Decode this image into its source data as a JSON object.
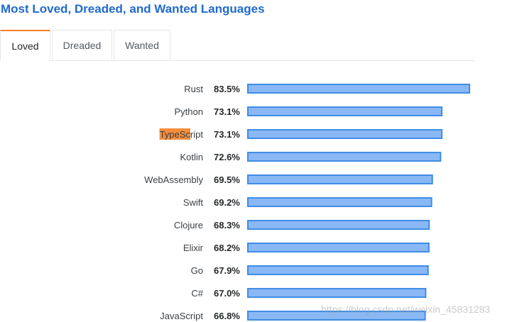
{
  "page": {
    "title": "Most Loved, Dreaded, and Wanted Languages"
  },
  "tabs": [
    {
      "label": "Loved",
      "active": true
    },
    {
      "label": "Dreaded",
      "active": false
    },
    {
      "label": "Wanted",
      "active": false
    }
  ],
  "colors": {
    "title": "#1f6acb",
    "tab_accent": "#f48024",
    "bar_fill": "#8ab8f5",
    "bar_stroke": "#3f8de6",
    "highlight": "#f58e3c"
  },
  "highlight": {
    "text": "TypeSc",
    "category": "TypeScript"
  },
  "chart_data": {
    "type": "bar",
    "orientation": "horizontal",
    "categories": [
      "Rust",
      "Python",
      "TypeScript",
      "Kotlin",
      "WebAssembly",
      "Swift",
      "Clojure",
      "Elixir",
      "Go",
      "C#",
      "JavaScript"
    ],
    "values": [
      83.5,
      73.1,
      73.1,
      72.6,
      69.5,
      69.2,
      68.3,
      68.2,
      67.9,
      67.0,
      66.8
    ],
    "value_labels": [
      "83.5%",
      "73.1%",
      "73.1%",
      "72.6%",
      "69.5%",
      "69.2%",
      "68.3%",
      "68.2%",
      "67.9%",
      "67.0%",
      "66.8%"
    ],
    "title": "",
    "xlabel": "",
    "ylabel": "",
    "grid": false
  },
  "watermark": "https://blog.csdn.net/weixin_45831283"
}
